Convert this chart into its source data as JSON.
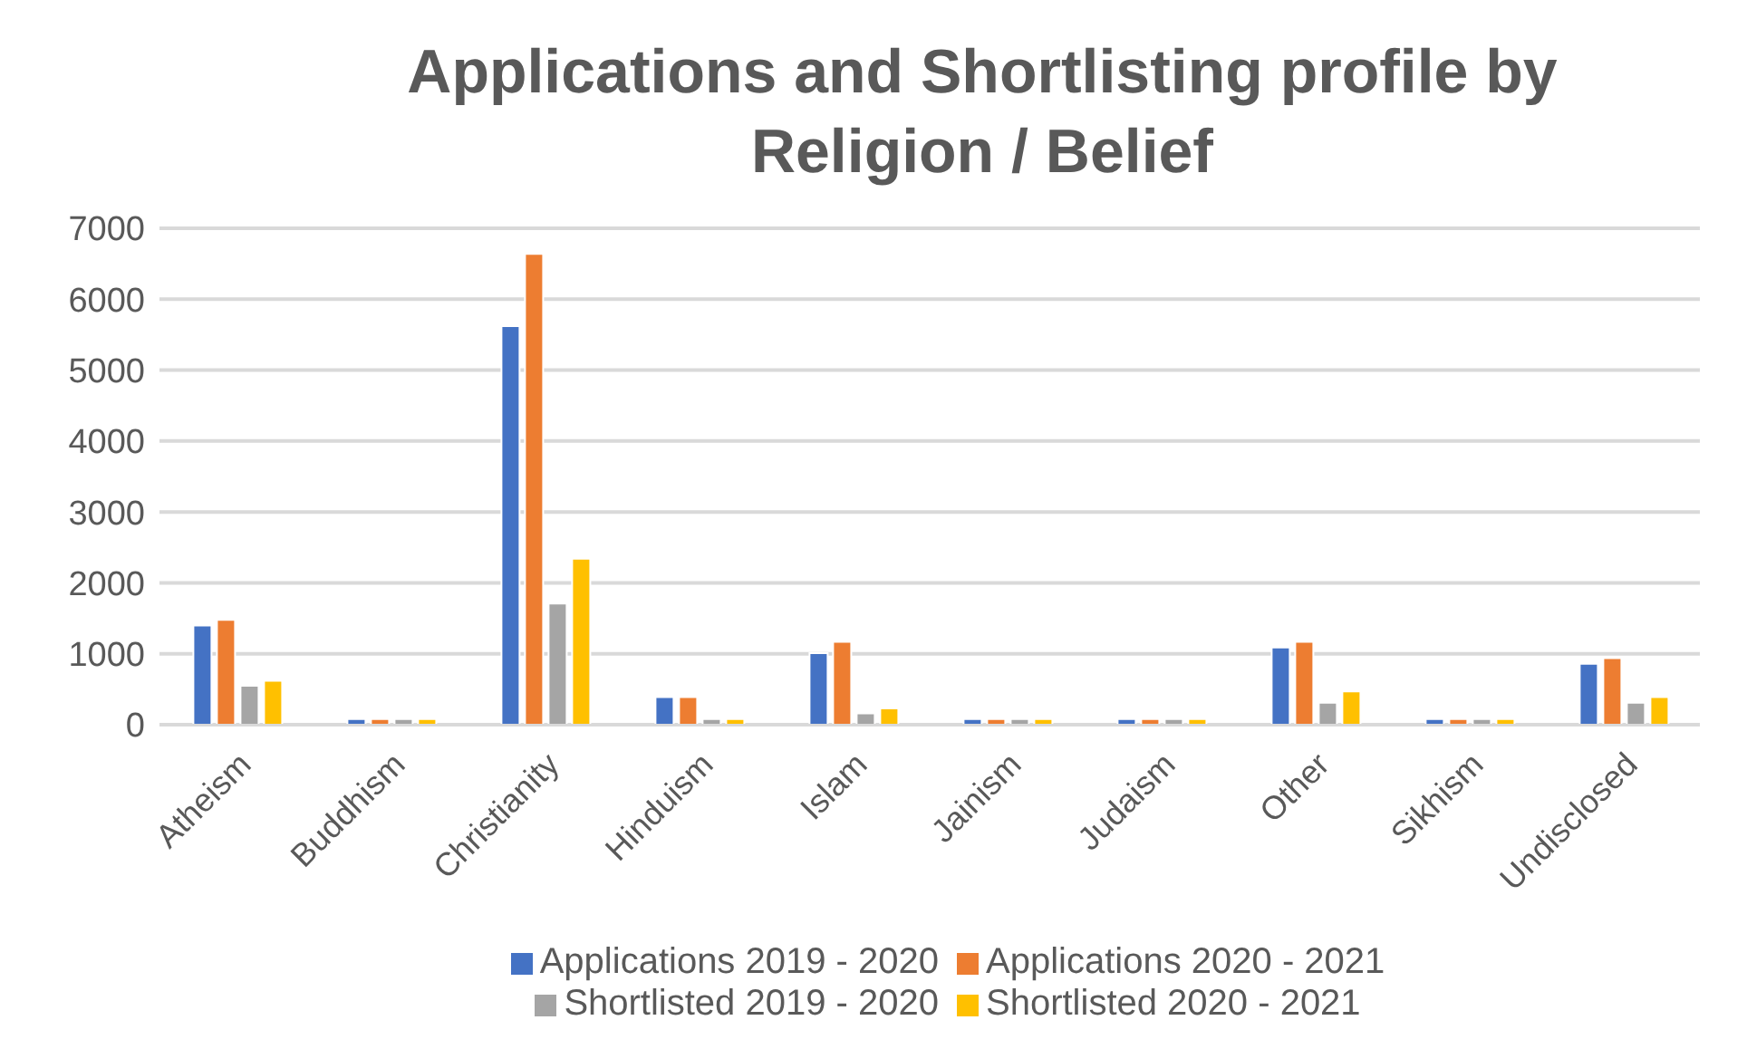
{
  "chart_data": {
    "type": "bar",
    "title": "Applications and Shortlisting profile by Religion / Belief",
    "categories": [
      "Atheism",
      "Buddhism",
      "Christianity",
      "Hinduism",
      "Islam",
      "Jainism",
      "Judaism",
      "Other",
      "Sikhism",
      "Undisclosed"
    ],
    "series": [
      {
        "name": "Applications 2019 - 2020",
        "color": "#4472c4",
        "values": [
          1400,
          80,
          5620,
          390,
          1010,
          80,
          80,
          1090,
          80,
          860
        ]
      },
      {
        "name": "Applications 2020 - 2021",
        "color": "#ed7d31",
        "values": [
          1480,
          80,
          6640,
          390,
          1170,
          80,
          80,
          1170,
          80,
          940
        ]
      },
      {
        "name": "Shortlisted 2019 - 2020",
        "color": "#a5a5a5",
        "values": [
          550,
          80,
          1710,
          80,
          160,
          80,
          80,
          310,
          80,
          310
        ]
      },
      {
        "name": "Shortlisted 2020 - 2021",
        "color": "#ffc000",
        "values": [
          620,
          80,
          2340,
          80,
          230,
          80,
          80,
          470,
          80,
          390
        ]
      }
    ],
    "ylim": [
      0,
      7000
    ],
    "yticks": [
      0,
      1000,
      2000,
      3000,
      4000,
      5000,
      6000,
      7000
    ],
    "grid": "y",
    "legend": "bottom"
  }
}
